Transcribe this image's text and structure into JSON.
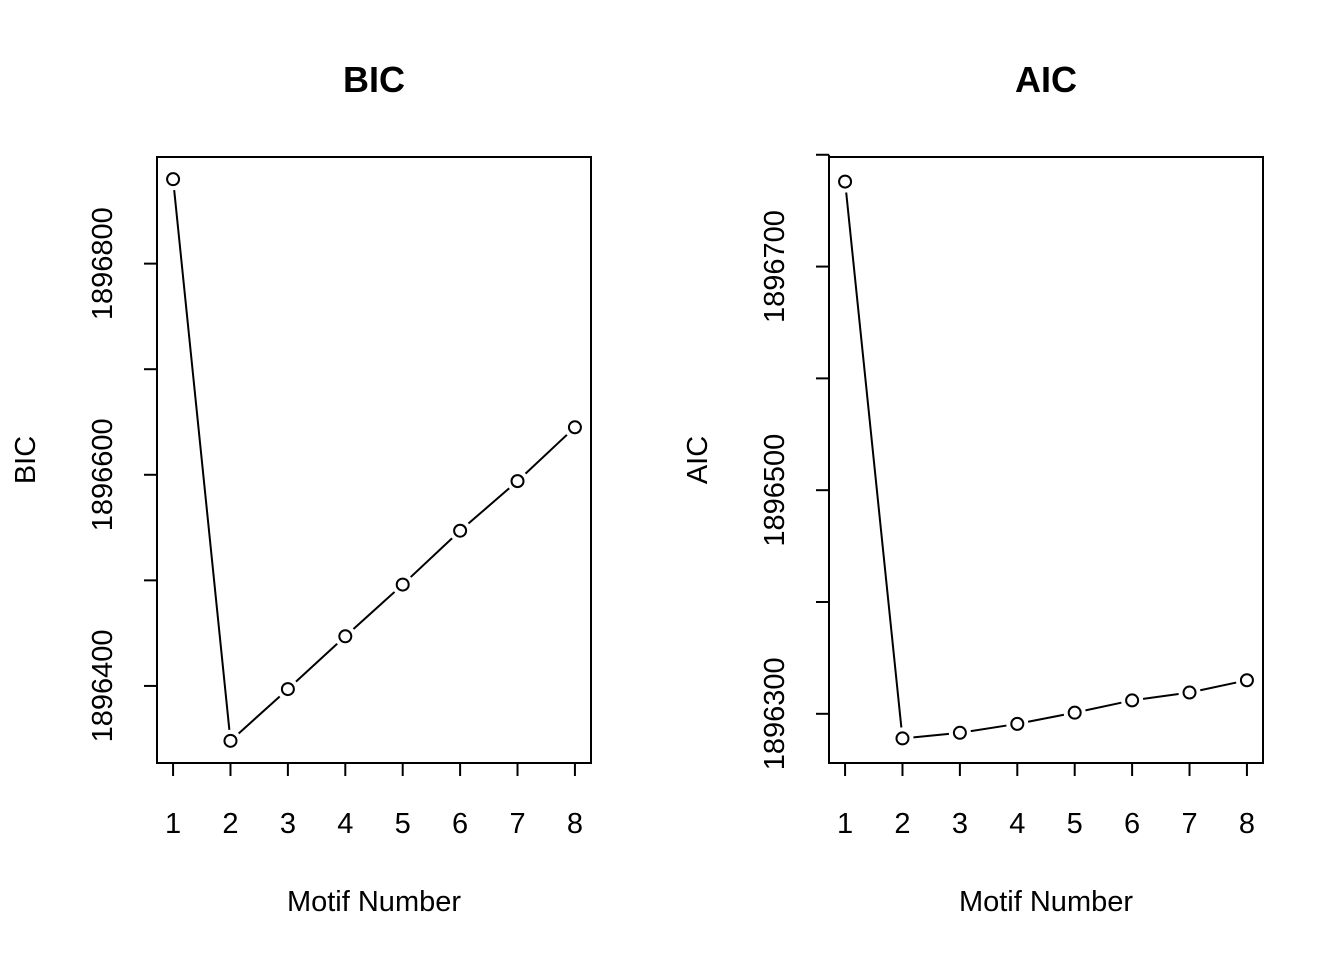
{
  "chart_data": [
    {
      "type": "line",
      "title": "BIC",
      "xlabel": "Motif Number",
      "ylabel": "BIC",
      "x": [
        1,
        2,
        3,
        4,
        5,
        6,
        7,
        8
      ],
      "series": [
        {
          "values": [
            1896880,
            1896348,
            1896397,
            1896447,
            1896496,
            1896547,
            1896594,
            1896645
          ]
        }
      ],
      "xticks": [
        "1",
        "2",
        "3",
        "4",
        "5",
        "6",
        "7",
        "8"
      ],
      "yticks": [
        1896400,
        1896500,
        1896600,
        1896700,
        1896800
      ],
      "ytick_labels": [
        "1896400",
        "",
        "1896600",
        "",
        "1896800"
      ],
      "xlim": [
        0.72,
        8.28
      ],
      "ylim": [
        1896327,
        1896901
      ],
      "grid": false,
      "markers": "open-circle",
      "line_style": "line through gaps between points"
    },
    {
      "type": "line",
      "title": "AIC",
      "xlabel": "Motif Number",
      "ylabel": "AIC",
      "x": [
        1,
        2,
        3,
        4,
        5,
        6,
        7,
        8
      ],
      "series": [
        {
          "values": [
            1896776,
            1896278,
            1896283,
            1896291,
            1896301,
            1896312,
            1896319,
            1896330
          ]
        }
      ],
      "xticks": [
        "1",
        "2",
        "3",
        "4",
        "5",
        "6",
        "7",
        "8"
      ],
      "yticks": [
        1896300,
        1896400,
        1896500,
        1896600,
        1896700,
        1896800
      ],
      "ytick_labels": [
        "1896300",
        "",
        "1896500",
        "",
        "1896700",
        ""
      ],
      "xlim": [
        0.72,
        8.28
      ],
      "ylim": [
        1896256,
        1896798
      ],
      "grid": false,
      "markers": "open-circle",
      "line_style": "line through gaps between points"
    }
  ]
}
